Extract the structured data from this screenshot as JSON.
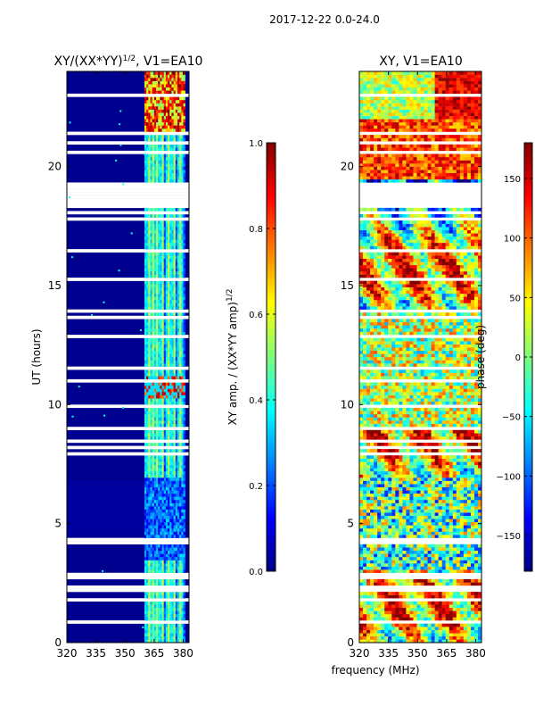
{
  "suptitle": "2017-12-22 0.0-24.0",
  "shared_xlabel": "frequency (MHz)",
  "colors": {
    "jet_stops": [
      "#00007f",
      "#0000ff",
      "#007fff",
      "#00ffff",
      "#7fff7f",
      "#ffff00",
      "#ff7f00",
      "#ff0000",
      "#7f0000"
    ]
  },
  "chart_data": [
    {
      "type": "heatmap",
      "title_main": "XY/(XX*YY)",
      "title_sup": "1/2",
      "title_tail": ", V1=EA10",
      "xlabel": "",
      "ylabel": "UT (hours)",
      "xlim": [
        320,
        383
      ],
      "ylim": [
        0,
        24
      ],
      "xticks": [
        320,
        335,
        350,
        365,
        380
      ],
      "yticks": [
        0,
        5,
        10,
        15,
        20
      ],
      "colorbar": {
        "label_main": "XY amp. / (XX*YY amp)",
        "label_sup": "1/2",
        "lim": [
          0.0,
          1.0
        ],
        "ticks": [
          "0.0",
          "0.2",
          "0.4",
          "0.6",
          "0.8",
          "1.0"
        ],
        "tick_values": [
          0.0,
          0.2,
          0.4,
          0.6,
          0.8,
          1.0
        ]
      },
      "description_regions": [
        {
          "freq": [
            320,
            360
          ],
          "ut": [
            0,
            24
          ],
          "value": 0.02
        },
        {
          "freq": [
            360,
            381
          ],
          "ut": [
            0,
            24
          ],
          "value": 0.35
        },
        {
          "freq": [
            360,
            381
          ],
          "ut": [
            22,
            24
          ],
          "value": 0.85
        },
        {
          "freq": [
            360,
            381
          ],
          "ut": [
            10.3,
            11
          ],
          "value": 0.8
        }
      ]
    },
    {
      "type": "heatmap",
      "title_main": "XY, V1=EA10",
      "xlabel": "",
      "ylabel": "",
      "xlim": [
        320,
        383
      ],
      "ylim": [
        0,
        24
      ],
      "xticks": [
        320,
        335,
        350,
        365,
        380
      ],
      "yticks": [
        0,
        5,
        10,
        15,
        20
      ],
      "colorbar": {
        "label_main": "phase (deg)",
        "lim": [
          -180,
          180
        ],
        "ticks": [
          "−150",
          "−100",
          "−50",
          "0",
          "50",
          "100",
          "150"
        ],
        "tick_values": [
          -150,
          -100,
          -50,
          0,
          50,
          100,
          150
        ]
      }
    }
  ]
}
